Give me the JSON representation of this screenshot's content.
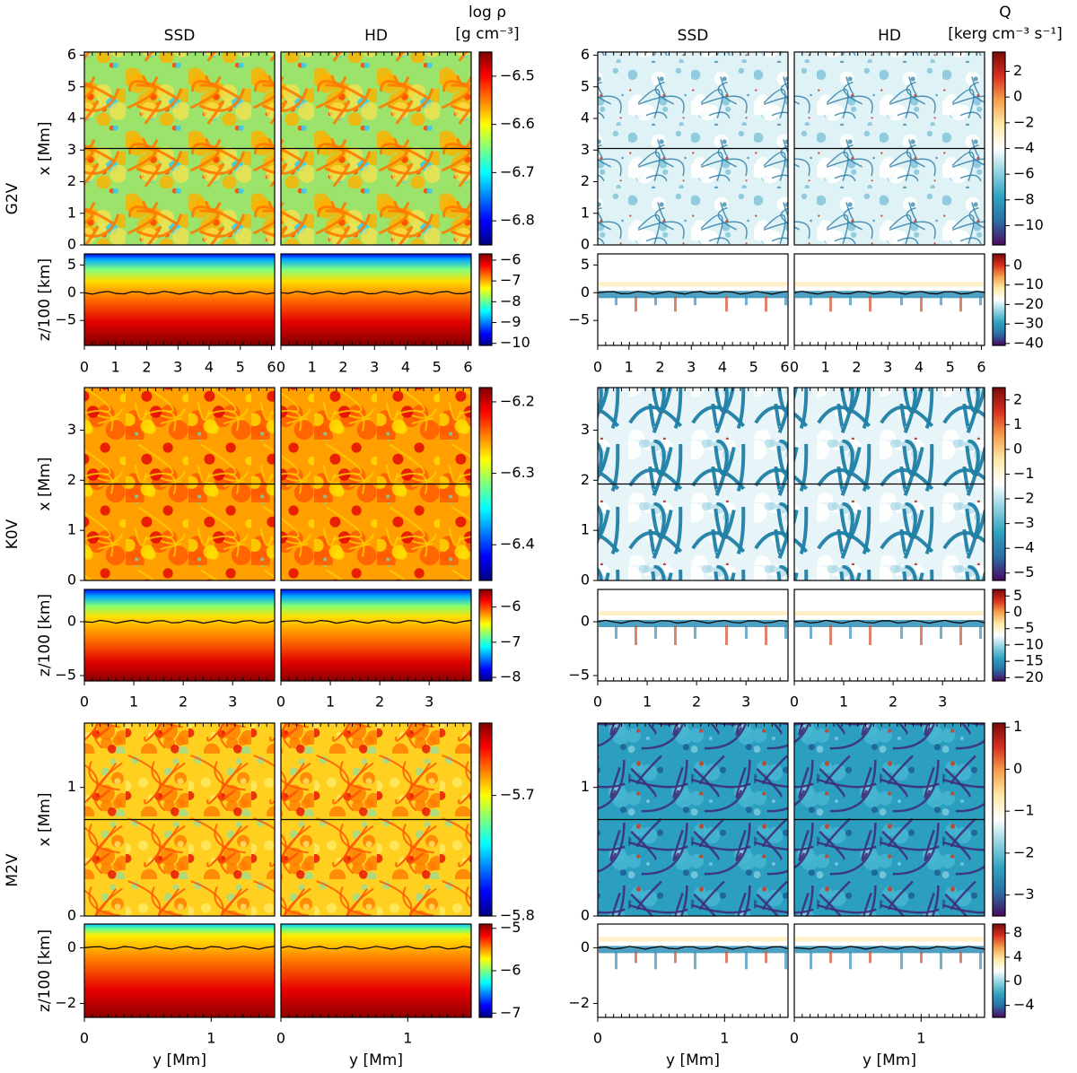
{
  "figure": {
    "column_titles": [
      "SSD",
      "HD",
      "SSD",
      "HD"
    ],
    "density_colorbar_title": [
      "log ρ",
      "[g cm⁻³]"
    ],
    "heating_colorbar_title": [
      "Q",
      "[kerg cm⁻³ s⁻¹]"
    ],
    "row_labels": [
      "G2V",
      "K0V",
      "M2V"
    ],
    "x_axis_label": "x [Mm]",
    "z_axis_label": "z/100 [km]",
    "y_axis_label": "y [Mm]",
    "colormaps": {
      "density": "jet",
      "heating": "seismic-teal"
    }
  },
  "chart_data": [
    {
      "type": "heatmap",
      "star": "G2V",
      "domain_y": 6.1,
      "top": {
        "ylim": [
          0,
          6.1
        ],
        "y_ticks": [
          "0",
          "1",
          "2",
          "3",
          "4",
          "5",
          "6"
        ],
        "density_cbar": {
          "range": [
            -6.85,
            -6.45
          ],
          "ticks": [
            "−6.5",
            "−6.6",
            "−6.7",
            "−6.8"
          ],
          "tick_values": [
            -6.5,
            -6.6,
            -6.7,
            -6.8
          ]
        },
        "heating_cbar": {
          "range": [
            -11.5,
            3.5
          ],
          "ticks": [
            "2",
            "0",
            "−2",
            "−4",
            "−6",
            "−8",
            "−10"
          ],
          "tick_values": [
            2,
            0,
            -2,
            -4,
            -6,
            -8,
            -10
          ]
        }
      },
      "bottom": {
        "zlim": [
          -9.5,
          7
        ],
        "z_ticks": [
          "5",
          "0",
          "−5"
        ],
        "z_tick_values": [
          5,
          0,
          -5
        ],
        "density_cbar": {
          "range": [
            -10.1,
            -5.7
          ],
          "ticks": [
            "−6",
            "−7",
            "−8",
            "−9",
            "−10"
          ],
          "tick_values": [
            -6,
            -7,
            -8,
            -9,
            -10
          ]
        },
        "heating_cbar": {
          "range": [
            -41,
            6
          ],
          "ticks": [
            "0",
            "−10",
            "−20",
            "−30",
            "−40"
          ],
          "tick_values": [
            0,
            -10,
            -20,
            -30,
            -40
          ]
        }
      },
      "x_ticks_left": [
        "0",
        "1",
        "2",
        "3",
        "4",
        "5",
        "6"
      ],
      "x_ticks_mid": [
        "0",
        "1",
        "2",
        "3",
        "4",
        "5",
        "6"
      ]
    },
    {
      "type": "heatmap",
      "star": "K0V",
      "domain_y": 3.85,
      "top": {
        "ylim": [
          0,
          3.85
        ],
        "y_ticks": [
          "0",
          "1",
          "2",
          "3"
        ],
        "density_cbar": {
          "range": [
            -6.45,
            -6.18
          ],
          "ticks": [
            "−6.2",
            "−6.3",
            "−6.4"
          ],
          "tick_values": [
            -6.2,
            -6.3,
            -6.4
          ]
        },
        "heating_cbar": {
          "range": [
            -5.3,
            2.5
          ],
          "ticks": [
            "2",
            "1",
            "0",
            "−1",
            "−2",
            "−3",
            "−4",
            "−5"
          ],
          "tick_values": [
            2,
            1,
            0,
            -1,
            -2,
            -3,
            -4,
            -5
          ]
        }
      },
      "bottom": {
        "zlim": [
          -5.5,
          3
        ],
        "z_ticks": [
          "0",
          "−5"
        ],
        "z_tick_values": [
          0,
          -5
        ],
        "density_cbar": {
          "range": [
            -8.1,
            -5.5
          ],
          "ticks": [
            "−6",
            "−7",
            "−8"
          ],
          "tick_values": [
            -6,
            -7,
            -8
          ]
        },
        "heating_cbar": {
          "range": [
            -21,
            7
          ],
          "ticks": [
            "5",
            "0",
            "−5",
            "−10",
            "−15",
            "−20"
          ],
          "tick_values": [
            5,
            0,
            -5,
            -10,
            -15,
            -20
          ]
        }
      },
      "x_ticks_left": [
        "0",
        "1",
        "2",
        "3"
      ],
      "x_ticks_mid": [
        "0",
        "1",
        "2",
        "3"
      ]
    },
    {
      "type": "heatmap",
      "star": "M2V",
      "domain_y": 1.5,
      "top": {
        "ylim": [
          0,
          1.5
        ],
        "y_ticks": [
          "0",
          "1"
        ],
        "density_cbar": {
          "range": [
            -5.8,
            -5.64
          ],
          "ticks": [
            "−5.7",
            "−5.8"
          ],
          "tick_values": [
            -5.7,
            -5.8
          ]
        },
        "heating_cbar": {
          "range": [
            -3.5,
            1.1
          ],
          "ticks": [
            "1",
            "0",
            "−1",
            "−2",
            "−3"
          ],
          "tick_values": [
            1,
            0,
            -1,
            -2,
            -3
          ]
        }
      },
      "bottom": {
        "zlim": [
          -2.5,
          0.85
        ],
        "z_ticks": [
          "0",
          "−2"
        ],
        "z_tick_values": [
          0,
          -2
        ],
        "density_cbar": {
          "range": [
            -7.1,
            -4.9
          ],
          "ticks": [
            "−5",
            "−6",
            "−7"
          ],
          "tick_values": [
            -5,
            -6,
            -7
          ]
        },
        "heating_cbar": {
          "range": [
            -6,
            9.5
          ],
          "ticks": [
            "8",
            "4",
            "0",
            "−4"
          ],
          "tick_values": [
            8,
            4,
            0,
            -4
          ]
        }
      },
      "x_ticks_left": [
        "0",
        "1"
      ],
      "x_ticks_mid": [
        "0",
        "1"
      ]
    }
  ]
}
